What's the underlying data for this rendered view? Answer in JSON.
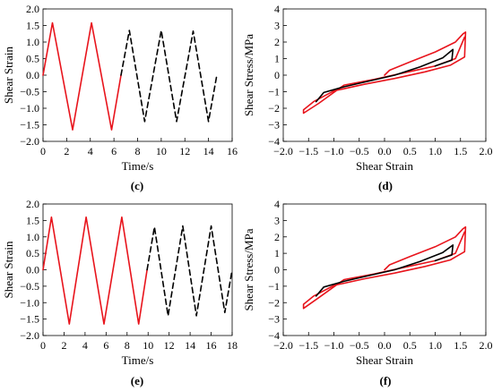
{
  "chart_data": [
    {
      "id": "c",
      "type": "line",
      "panel_label": "(c)",
      "title": "",
      "xlabel": "Time/s",
      "ylabel": "Shear Strain",
      "xlim": [
        0,
        16
      ],
      "ylim": [
        -2.0,
        2.0
      ],
      "xticks": [
        "0",
        "2",
        "4",
        "6",
        "8",
        "10",
        "12",
        "14",
        "16"
      ],
      "yticks": [
        "-2.0",
        "-1.5",
        "-1.0",
        "-0.5",
        "0.0",
        "0.5",
        "1.0",
        "1.5",
        "2.0"
      ],
      "grid": false,
      "series": [
        {
          "style": "solid",
          "color": "#e8141c",
          "x": [
            0,
            0.8,
            2.5,
            4.1,
            5.8,
            6.6
          ],
          "y": [
            0,
            1.58,
            -1.65,
            1.58,
            -1.65,
            0
          ]
        },
        {
          "style": "dashed",
          "color": "#000000",
          "x": [
            6.6,
            7.3,
            8.6,
            10.0,
            11.3,
            12.7,
            14.0,
            14.7
          ],
          "y": [
            0,
            1.35,
            -1.4,
            1.35,
            -1.4,
            1.33,
            -1.4,
            0
          ]
        }
      ]
    },
    {
      "id": "d",
      "type": "line",
      "panel_label": "(d)",
      "title": "",
      "xlabel": "Shear Strain",
      "ylabel": "Shear Stress/MPa",
      "xlim": [
        -2.0,
        2.0
      ],
      "ylim": [
        -4,
        4
      ],
      "xticks": [
        "-2.0",
        "-1.5",
        "-1.0",
        "-0.5",
        "0.0",
        "0.5",
        "1.0",
        "1.5",
        "2.0"
      ],
      "yticks": [
        "-4",
        "-3",
        "-2",
        "-1",
        "0",
        "1",
        "2",
        "3",
        "4"
      ],
      "grid": false,
      "series": [
        {
          "style": "solid",
          "color": "#e8141c",
          "x": [
            0,
            0.1,
            0.5,
            1.0,
            1.4,
            1.55,
            1.6,
            1.58,
            1.3,
            0.8,
            0.2,
            -0.4,
            -1.0,
            -1.4,
            -1.6,
            -1.6,
            -1.3,
            -0.8,
            -0.2,
            0.4,
            1.0,
            1.4,
            1.58
          ],
          "y": [
            0,
            0.3,
            0.8,
            1.4,
            2.0,
            2.5,
            2.6,
            1.1,
            0.6,
            0.2,
            -0.2,
            -0.55,
            -0.95,
            -1.6,
            -2.1,
            -2.3,
            -1.7,
            -0.6,
            -0.25,
            0.15,
            0.55,
            1.0,
            2.3
          ]
        },
        {
          "style": "solid",
          "color": "#000000",
          "x": [
            -1.35,
            -1.2,
            -0.8,
            -0.3,
            0.2,
            0.7,
            1.15,
            1.35,
            1.33,
            1.0
          ],
          "y": [
            -1.6,
            -1.05,
            -0.7,
            -0.35,
            0.0,
            0.5,
            1.05,
            1.55,
            0.9,
            0.55
          ]
        }
      ]
    },
    {
      "id": "e",
      "type": "line",
      "panel_label": "(e)",
      "title": "",
      "xlabel": "Time/s",
      "ylabel": "Shear Strain",
      "xlim": [
        0,
        18
      ],
      "ylim": [
        -2.0,
        2.0
      ],
      "xticks": [
        "0",
        "2",
        "4",
        "6",
        "8",
        "10",
        "12",
        "14",
        "16",
        "18"
      ],
      "yticks": [
        "-2.0",
        "-1.5",
        "-1.0",
        "-0.5",
        "0.0",
        "0.5",
        "1.0",
        "1.5",
        "2.0"
      ],
      "grid": false,
      "series": [
        {
          "style": "solid",
          "color": "#e8141c",
          "x": [
            0,
            0.8,
            2.5,
            4.1,
            5.8,
            7.5,
            9.1,
            9.9
          ],
          "y": [
            0,
            1.6,
            -1.65,
            1.6,
            -1.65,
            1.6,
            -1.65,
            0
          ]
        },
        {
          "style": "dashed",
          "color": "#000000",
          "x": [
            9.9,
            10.6,
            11.9,
            13.3,
            14.6,
            16.0,
            17.3,
            18.0
          ],
          "y": [
            0,
            1.3,
            -1.4,
            1.33,
            -1.4,
            1.33,
            -1.3,
            0
          ]
        }
      ]
    },
    {
      "id": "f",
      "type": "line",
      "panel_label": "(f)",
      "title": "",
      "xlabel": "Shear Strain",
      "ylabel": "Shear Stress/MPa",
      "xlim": [
        -2.0,
        2.0
      ],
      "ylim": [
        -4,
        4
      ],
      "xticks": [
        "-2.0",
        "-1.5",
        "-1.0",
        "-0.5",
        "0.0",
        "0.5",
        "1.0",
        "1.5",
        "2.0"
      ],
      "yticks": [
        "-4",
        "-3",
        "-2",
        "-1",
        "0",
        "1",
        "2",
        "3",
        "4"
      ],
      "grid": false,
      "series": [
        {
          "style": "solid",
          "color": "#e8141c",
          "x": [
            0,
            0.1,
            0.5,
            1.0,
            1.4,
            1.55,
            1.6,
            1.58,
            1.3,
            0.8,
            0.2,
            -0.4,
            -1.0,
            -1.4,
            -1.6,
            -1.6,
            -1.3,
            -0.8,
            -0.2,
            0.4,
            1.0,
            1.4,
            1.58
          ],
          "y": [
            0,
            0.3,
            0.8,
            1.4,
            2.0,
            2.5,
            2.6,
            1.1,
            0.6,
            0.2,
            -0.2,
            -0.55,
            -0.95,
            -1.6,
            -2.1,
            -2.35,
            -1.7,
            -0.6,
            -0.25,
            0.15,
            0.55,
            1.0,
            2.3
          ]
        },
        {
          "style": "solid",
          "color": "#000000",
          "x": [
            -1.35,
            -1.2,
            -0.8,
            -0.3,
            0.2,
            0.7,
            1.15,
            1.35,
            1.33,
            1.0
          ],
          "y": [
            -1.6,
            -1.05,
            -0.7,
            -0.35,
            0.0,
            0.5,
            1.05,
            1.5,
            0.9,
            0.55
          ]
        }
      ]
    }
  ]
}
